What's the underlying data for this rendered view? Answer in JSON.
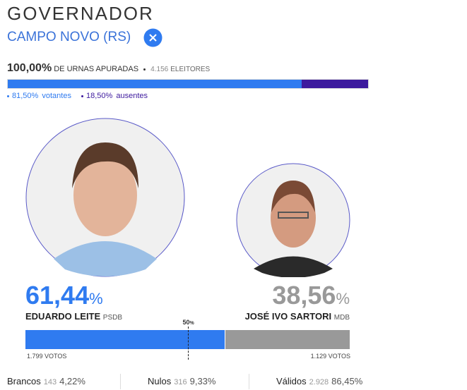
{
  "header": {
    "title": "GOVERNADOR",
    "location": "CAMPO NOVO (RS)"
  },
  "counting": {
    "percent": "100,00%",
    "label": "DE URNAS APURADAS",
    "electors": "4.156",
    "electors_label": "ELEITORES"
  },
  "turnout": {
    "voters": {
      "value": 81.5,
      "label": "81,50%",
      "name": "votantes",
      "color": "#2f7bf0"
    },
    "absent": {
      "value": 18.5,
      "label": "18,50%",
      "name": "ausentes",
      "color": "#3d1a9e"
    }
  },
  "candidates": [
    {
      "name": "EDUARDO LEITE",
      "party": "PSDB",
      "percent": {
        "value": 61.44,
        "label": "61,44"
      },
      "percent_sign": "%",
      "votes": "1.799",
      "votes_label": "VOTOS",
      "color": "#2f7bf0"
    },
    {
      "name": "JOSÉ IVO SARTORI",
      "party": "MDB",
      "percent": {
        "value": 38.56,
        "label": "38,56"
      },
      "percent_sign": "%",
      "votes": "1.129",
      "votes_label": "VOTOS",
      "color": "#999999"
    }
  ],
  "midline": {
    "value": 50,
    "label": "50",
    "unit": "%"
  },
  "summary": [
    {
      "label": "Brancos",
      "count": "143",
      "percent": "4,22%"
    },
    {
      "label": "Nulos",
      "count": "316",
      "percent": "9,33%"
    },
    {
      "label": "Válidos",
      "count": "2.928",
      "percent": "86,45%"
    }
  ]
}
